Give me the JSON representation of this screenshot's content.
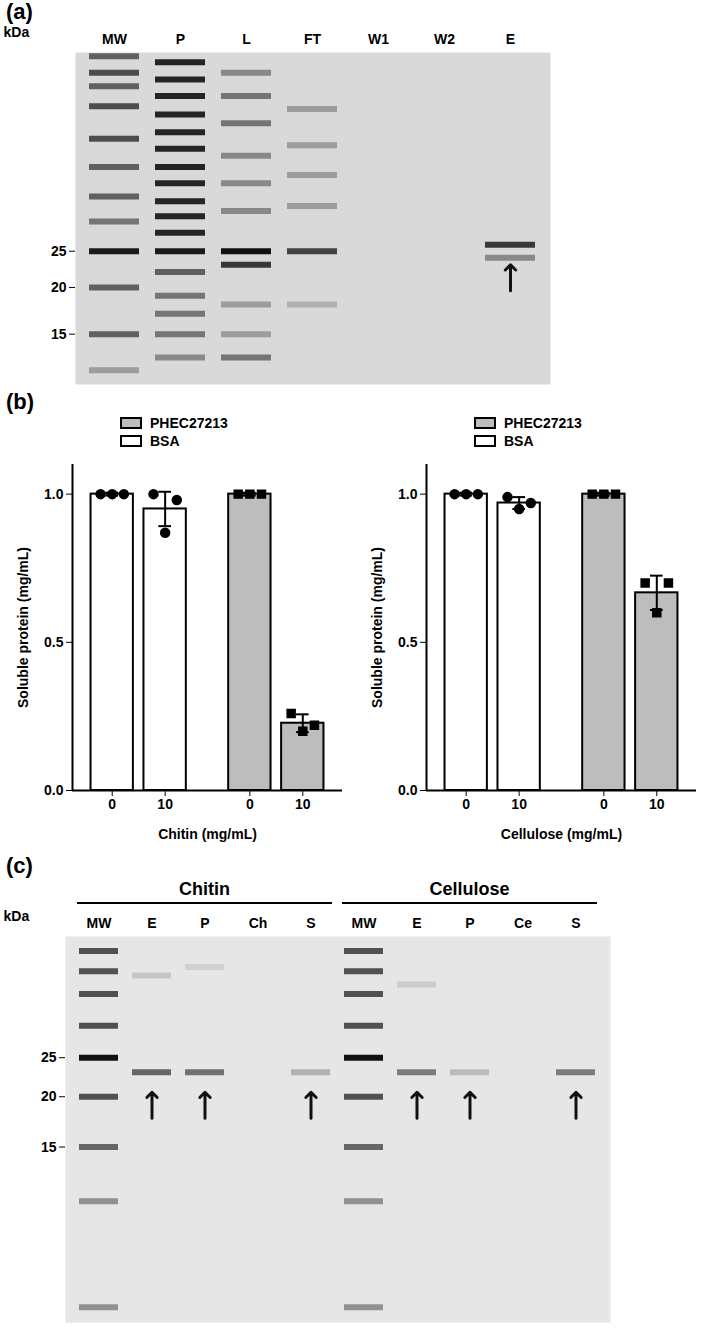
{
  "panel_labels": [
    "(a)",
    "(b)",
    "(c)"
  ],
  "gel_a": {
    "y_label": "kDa",
    "ylim": [
      11,
      85
    ],
    "yticks": [
      25,
      20,
      15
    ],
    "lanes": [
      {
        "label": "MW",
        "bands": [
          {
            "kDa": 83,
            "intensity": 0.6
          },
          {
            "kDa": 75,
            "intensity": 0.7
          },
          {
            "kDa": 69,
            "intensity": 0.6
          },
          {
            "kDa": 61,
            "intensity": 0.7
          },
          {
            "kDa": 50,
            "intensity": 0.7
          },
          {
            "kDa": 42,
            "intensity": 0.6
          },
          {
            "kDa": 35,
            "intensity": 0.6
          },
          {
            "kDa": 30,
            "intensity": 0.5
          },
          {
            "kDa": 25,
            "intensity": 0.95
          },
          {
            "kDa": 20,
            "intensity": 0.6
          },
          {
            "kDa": 15,
            "intensity": 0.6
          },
          {
            "kDa": 12,
            "intensity": 0.3
          }
        ]
      },
      {
        "label": "P",
        "bands": [
          {
            "kDa": 80,
            "intensity": 0.9
          },
          {
            "kDa": 72,
            "intensity": 0.9
          },
          {
            "kDa": 65,
            "intensity": 0.9
          },
          {
            "kDa": 58,
            "intensity": 0.9
          },
          {
            "kDa": 52,
            "intensity": 0.9
          },
          {
            "kDa": 47,
            "intensity": 0.9
          },
          {
            "kDa": 42,
            "intensity": 0.9
          },
          {
            "kDa": 38,
            "intensity": 0.9
          },
          {
            "kDa": 34,
            "intensity": 0.9
          },
          {
            "kDa": 31,
            "intensity": 0.9
          },
          {
            "kDa": 28,
            "intensity": 0.9
          },
          {
            "kDa": 25,
            "intensity": 0.95
          },
          {
            "kDa": 22,
            "intensity": 0.6
          },
          {
            "kDa": 19,
            "intensity": 0.5
          },
          {
            "kDa": 17,
            "intensity": 0.5
          },
          {
            "kDa": 15,
            "intensity": 0.5
          },
          {
            "kDa": 13,
            "intensity": 0.4
          }
        ]
      },
      {
        "label": "L",
        "bands": [
          {
            "kDa": 75,
            "intensity": 0.4
          },
          {
            "kDa": 65,
            "intensity": 0.5
          },
          {
            "kDa": 55,
            "intensity": 0.5
          },
          {
            "kDa": 45,
            "intensity": 0.4
          },
          {
            "kDa": 38,
            "intensity": 0.4
          },
          {
            "kDa": 32,
            "intensity": 0.4
          },
          {
            "kDa": 25,
            "intensity": 1.0
          },
          {
            "kDa": 23,
            "intensity": 0.8
          },
          {
            "kDa": 18,
            "intensity": 0.3
          },
          {
            "kDa": 15,
            "intensity": 0.3
          },
          {
            "kDa": 13,
            "intensity": 0.5
          }
        ]
      },
      {
        "label": "FT",
        "bands": [
          {
            "kDa": 60,
            "intensity": 0.3
          },
          {
            "kDa": 48,
            "intensity": 0.3
          },
          {
            "kDa": 40,
            "intensity": 0.3
          },
          {
            "kDa": 33,
            "intensity": 0.3
          },
          {
            "kDa": 25,
            "intensity": 0.75
          },
          {
            "kDa": 18,
            "intensity": 0.2
          }
        ]
      },
      {
        "label": "W1",
        "bands": []
      },
      {
        "label": "W2",
        "bands": []
      },
      {
        "label": "E",
        "bands": [
          {
            "kDa": 26,
            "intensity": 0.8
          },
          {
            "kDa": 24,
            "intensity": 0.4
          }
        ],
        "arrow": true
      }
    ]
  },
  "chart_data": [
    {
      "type": "bar",
      "categories": [
        "0",
        "10",
        "0",
        "10"
      ],
      "x_label": "Chitin (mg/mL)",
      "y_label": "Soluble protein (mg/mL)",
      "ylim": [
        0,
        1.1
      ],
      "yticks": [
        {
          "value": 0,
          "label": "0.0"
        },
        {
          "value": 0.5,
          "label": "0.5"
        },
        {
          "value": 1,
          "label": "1.0"
        }
      ],
      "legend": "top",
      "series": [
        {
          "name": "PHEC27213",
          "color": "#bdbdbd",
          "marker": "square",
          "values": [
            null,
            null,
            1.0,
            0.227
          ],
          "errors": [
            null,
            null,
            0.005,
            0.03
          ],
          "points": [
            null,
            null,
            [
              1.0,
              1.0,
              1.0
            ],
            [
              0.26,
              0.2,
              0.22
            ]
          ]
        },
        {
          "name": "BSA",
          "color": "#ffffff",
          "marker": "circle",
          "values": [
            1.0,
            0.95,
            null,
            null
          ],
          "errors": [
            0.005,
            0.058,
            null,
            null
          ],
          "points": [
            [
              1.0,
              1.0,
              1.0
            ],
            [
              1.0,
              0.87,
              0.98
            ],
            null,
            null
          ]
        }
      ]
    },
    {
      "type": "bar",
      "categories": [
        "0",
        "10",
        "0",
        "10"
      ],
      "x_label": "Cellulose (mg/mL)",
      "y_label": "Soluble protein (mg/mL)",
      "ylim": [
        0,
        1.1
      ],
      "yticks": [
        {
          "value": 0,
          "label": "0.0"
        },
        {
          "value": 0.5,
          "label": "0.5"
        },
        {
          "value": 1,
          "label": "1.0"
        }
      ],
      "legend": "top",
      "series": [
        {
          "name": "PHEC27213",
          "color": "#bdbdbd",
          "marker": "square",
          "values": [
            null,
            null,
            1.0,
            0.667
          ],
          "errors": [
            null,
            null,
            0.005,
            0.058
          ],
          "points": [
            null,
            null,
            [
              1.0,
              1.0,
              1.0
            ],
            [
              0.7,
              0.6,
              0.7
            ]
          ]
        },
        {
          "name": "BSA",
          "color": "#ffffff",
          "marker": "circle",
          "values": [
            1.0,
            0.97,
            null,
            null
          ],
          "errors": [
            0.005,
            0.02,
            null,
            null
          ],
          "points": [
            [
              1.0,
              1.0,
              1.0
            ],
            [
              0.99,
              0.95,
              0.97
            ],
            null,
            null
          ]
        }
      ]
    }
  ],
  "gel_c": {
    "y_label": "kDa",
    "ylim": [
      5.5,
      50
    ],
    "yticks": [
      25,
      20,
      15
    ],
    "groups": [
      {
        "label": "Chitin",
        "lanes": [
          {
            "label": "MW",
            "bands": [
              {
                "kDa": 46,
                "intensity": 0.7
              },
              {
                "kDa": 41,
                "intensity": 0.7
              },
              {
                "kDa": 36,
                "intensity": 0.7
              },
              {
                "kDa": 30,
                "intensity": 0.7
              },
              {
                "kDa": 25,
                "intensity": 1.0
              },
              {
                "kDa": 20,
                "intensity": 0.7
              },
              {
                "kDa": 15,
                "intensity": 0.6
              },
              {
                "kDa": 11,
                "intensity": 0.4
              },
              {
                "kDa": 6,
                "intensity": 0.4
              }
            ]
          },
          {
            "label": "E",
            "bands": [
              {
                "kDa": 40,
                "intensity": 0.15
              },
              {
                "kDa": 23,
                "intensity": 0.6
              }
            ],
            "arrow": true
          },
          {
            "label": "P",
            "bands": [
              {
                "kDa": 42,
                "intensity": 0.1
              },
              {
                "kDa": 23,
                "intensity": 0.55
              }
            ],
            "arrow": true
          },
          {
            "label": "Ch",
            "bands": []
          },
          {
            "label": "S",
            "bands": [
              {
                "kDa": 23,
                "intensity": 0.25
              }
            ],
            "arrow": true
          }
        ]
      },
      {
        "label": "Cellulose",
        "lanes": [
          {
            "label": "MW",
            "bands": [
              {
                "kDa": 46,
                "intensity": 0.7
              },
              {
                "kDa": 41,
                "intensity": 0.7
              },
              {
                "kDa": 36,
                "intensity": 0.7
              },
              {
                "kDa": 30,
                "intensity": 0.7
              },
              {
                "kDa": 25,
                "intensity": 1.0
              },
              {
                "kDa": 20,
                "intensity": 0.7
              },
              {
                "kDa": 15,
                "intensity": 0.6
              },
              {
                "kDa": 11,
                "intensity": 0.4
              },
              {
                "kDa": 6,
                "intensity": 0.4
              }
            ]
          },
          {
            "label": "E",
            "bands": [
              {
                "kDa": 38,
                "intensity": 0.12
              },
              {
                "kDa": 23,
                "intensity": 0.5
              }
            ],
            "arrow": true
          },
          {
            "label": "P",
            "bands": [
              {
                "kDa": 23,
                "intensity": 0.2
              }
            ],
            "arrow": true
          },
          {
            "label": "Ce",
            "bands": []
          },
          {
            "label": "S",
            "bands": [
              {
                "kDa": 23,
                "intensity": 0.5
              }
            ],
            "arrow": true
          }
        ]
      }
    ]
  }
}
